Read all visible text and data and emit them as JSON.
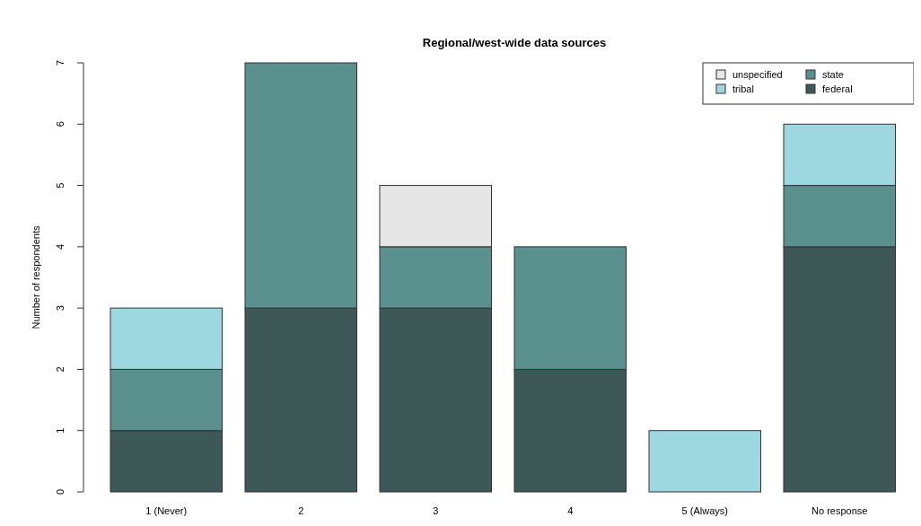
{
  "chart_data": {
    "type": "bar",
    "title": "Regional/west-wide data sources",
    "ylabel": "Number of respondents",
    "categories": [
      "1 (Never)",
      "2",
      "3",
      "4",
      "5 (Always)",
      "No response"
    ],
    "stacked": true,
    "series": [
      {
        "name": "federal",
        "color": "#3d5856",
        "values": [
          1,
          3,
          3,
          2,
          0,
          4
        ]
      },
      {
        "name": "state",
        "color": "#5a918f",
        "values": [
          1,
          4,
          1,
          2,
          0,
          1
        ]
      },
      {
        "name": "tribal",
        "color": "#9dd8e0",
        "values": [
          1,
          0,
          0,
          0,
          1,
          1
        ]
      },
      {
        "name": "unspecified",
        "color": "#e6e6e6",
        "values": [
          0,
          0,
          1,
          0,
          0,
          0
        ]
      }
    ],
    "ylim": [
      0,
      7
    ],
    "yticks": [
      0,
      1,
      2,
      3,
      4,
      5,
      6,
      7
    ],
    "legend": "top right",
    "grid": false
  }
}
